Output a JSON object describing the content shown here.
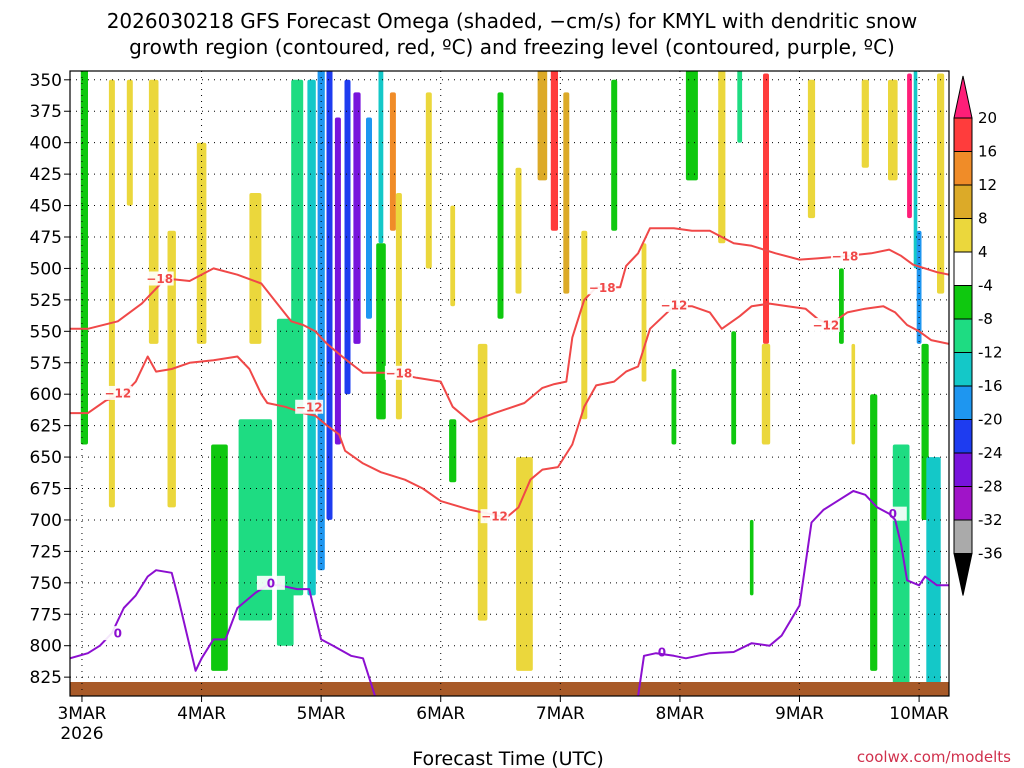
{
  "chart_data": {
    "type": "heatmap",
    "title_line1": "2026030218 GFS Forecast Omega (shaded, −cm/s) for KMYL with dendritic snow",
    "title_line2": "growth region (contoured, red, ºC) and freezing level (contoured, purple, ºC)",
    "xlabel": "Forecast Time (UTC)",
    "credit": "coolwx.com/modelts",
    "x_ticks": [
      {
        "label": "3MAR",
        "sub": "2026",
        "day": 3
      },
      {
        "label": "4MAR",
        "day": 4
      },
      {
        "label": "5MAR",
        "day": 5
      },
      {
        "label": "6MAR",
        "day": 6
      },
      {
        "label": "7MAR",
        "day": 7
      },
      {
        "label": "8MAR",
        "day": 8
      },
      {
        "label": "9MAR",
        "day": 9
      },
      {
        "label": "10MAR",
        "day": 10
      }
    ],
    "xlim": [
      2.9,
      10.25
    ],
    "y_ticks": [
      350,
      375,
      400,
      425,
      450,
      475,
      500,
      525,
      550,
      575,
      600,
      625,
      650,
      675,
      700,
      725,
      750,
      775,
      800,
      825
    ],
    "ylim": [
      343,
      840
    ],
    "grid": true,
    "colorbar": {
      "levels": [
        20,
        16,
        12,
        8,
        4,
        -4,
        -8,
        -12,
        -16,
        -20,
        -24,
        -28,
        -32,
        -36
      ],
      "colors": [
        "#ff1e78",
        "#ff3c3c",
        "#f08c28",
        "#dcaa28",
        "#ebd73c",
        "#ffffff",
        "#0fc80f",
        "#1edc82",
        "#14c8c8",
        "#1e96f0",
        "#1e3cf0",
        "#7814dc",
        "#a014c8",
        "#aaaaaa",
        "#000000"
      ]
    },
    "omega_features": [
      {
        "t": 3.02,
        "p1": 150,
        "p2": 640,
        "w": 0.06,
        "v": -8
      },
      {
        "t": 3.25,
        "p1": 350,
        "p2": 690,
        "w": 0.05,
        "v": 6
      },
      {
        "t": 3.4,
        "p1": 350,
        "p2": 450,
        "w": 0.05,
        "v": 6
      },
      {
        "t": 3.6,
        "p1": 350,
        "p2": 560,
        "w": 0.08,
        "v": 6
      },
      {
        "t": 3.75,
        "p1": 470,
        "p2": 690,
        "w": 0.07,
        "v": 5
      },
      {
        "t": 4.0,
        "p1": 400,
        "p2": 560,
        "w": 0.08,
        "v": 5
      },
      {
        "t": 4.15,
        "p1": 640,
        "p2": 820,
        "w": 0.14,
        "v": -8
      },
      {
        "t": 4.45,
        "p1": 620,
        "p2": 780,
        "w": 0.28,
        "v": -10
      },
      {
        "t": 4.45,
        "p1": 440,
        "p2": 560,
        "w": 0.1,
        "v": 6
      },
      {
        "t": 4.7,
        "p1": 540,
        "p2": 800,
        "w": 0.14,
        "v": -9
      },
      {
        "t": 4.8,
        "p1": 350,
        "p2": 760,
        "w": 0.1,
        "v": -11
      },
      {
        "t": 4.92,
        "p1": 350,
        "p2": 760,
        "w": 0.07,
        "v": -14
      },
      {
        "t": 5.0,
        "p1": 340,
        "p2": 740,
        "w": 0.06,
        "v": -18
      },
      {
        "t": 5.07,
        "p1": 340,
        "p2": 700,
        "w": 0.05,
        "v": -23
      },
      {
        "t": 5.14,
        "p1": 380,
        "p2": 640,
        "w": 0.05,
        "v": -28
      },
      {
        "t": 5.22,
        "p1": 350,
        "p2": 600,
        "w": 0.05,
        "v": -22
      },
      {
        "t": 5.3,
        "p1": 360,
        "p2": 560,
        "w": 0.06,
        "v": -26
      },
      {
        "t": 5.4,
        "p1": 380,
        "p2": 540,
        "w": 0.05,
        "v": -20
      },
      {
        "t": 5.5,
        "p1": 340,
        "p2": 480,
        "w": 0.04,
        "v": -14
      },
      {
        "t": 5.5,
        "p1": 480,
        "p2": 620,
        "w": 0.08,
        "v": -8
      },
      {
        "t": 5.6,
        "p1": 360,
        "p2": 470,
        "w": 0.05,
        "v": 12
      },
      {
        "t": 5.65,
        "p1": 440,
        "p2": 620,
        "w": 0.05,
        "v": 6
      },
      {
        "t": 5.9,
        "p1": 360,
        "p2": 500,
        "w": 0.05,
        "v": 6
      },
      {
        "t": 6.1,
        "p1": 450,
        "p2": 530,
        "w": 0.04,
        "v": 6
      },
      {
        "t": 6.1,
        "p1": 620,
        "p2": 670,
        "w": 0.06,
        "v": -8
      },
      {
        "t": 6.35,
        "p1": 560,
        "p2": 780,
        "w": 0.08,
        "v": 5
      },
      {
        "t": 6.5,
        "p1": 360,
        "p2": 540,
        "w": 0.05,
        "v": -8
      },
      {
        "t": 6.65,
        "p1": 420,
        "p2": 520,
        "w": 0.05,
        "v": 6
      },
      {
        "t": 6.7,
        "p1": 650,
        "p2": 820,
        "w": 0.14,
        "v": 6
      },
      {
        "t": 6.85,
        "p1": 340,
        "p2": 430,
        "w": 0.08,
        "v": 10
      },
      {
        "t": 6.95,
        "p1": 340,
        "p2": 470,
        "w": 0.06,
        "v": 18
      },
      {
        "t": 7.05,
        "p1": 360,
        "p2": 520,
        "w": 0.05,
        "v": 8
      },
      {
        "t": 7.2,
        "p1": 470,
        "p2": 620,
        "w": 0.05,
        "v": 6
      },
      {
        "t": 7.45,
        "p1": 350,
        "p2": 470,
        "w": 0.05,
        "v": -8
      },
      {
        "t": 7.7,
        "p1": 480,
        "p2": 590,
        "w": 0.04,
        "v": 6
      },
      {
        "t": 7.95,
        "p1": 580,
        "p2": 640,
        "w": 0.04,
        "v": -8
      },
      {
        "t": 8.1,
        "p1": 340,
        "p2": 430,
        "w": 0.1,
        "v": -8
      },
      {
        "t": 8.35,
        "p1": 340,
        "p2": 480,
        "w": 0.06,
        "v": 6
      },
      {
        "t": 8.45,
        "p1": 550,
        "p2": 640,
        "w": 0.04,
        "v": -8
      },
      {
        "t": 8.5,
        "p1": 340,
        "p2": 400,
        "w": 0.04,
        "v": -12
      },
      {
        "t": 8.72,
        "p1": 345,
        "p2": 560,
        "w": 0.05,
        "v": 19
      },
      {
        "t": 8.72,
        "p1": 560,
        "p2": 640,
        "w": 0.07,
        "v": 6
      },
      {
        "t": 8.6,
        "p1": 700,
        "p2": 760,
        "w": 0.03,
        "v": -8
      },
      {
        "t": 9.1,
        "p1": 350,
        "p2": 460,
        "w": 0.06,
        "v": 5
      },
      {
        "t": 9.35,
        "p1": 500,
        "p2": 560,
        "w": 0.04,
        "v": -8
      },
      {
        "t": 9.45,
        "p1": 560,
        "p2": 640,
        "w": 0.03,
        "v": 6
      },
      {
        "t": 9.55,
        "p1": 350,
        "p2": 420,
        "w": 0.06,
        "v": 5
      },
      {
        "t": 9.62,
        "p1": 600,
        "p2": 820,
        "w": 0.06,
        "v": -8
      },
      {
        "t": 9.78,
        "p1": 350,
        "p2": 430,
        "w": 0.08,
        "v": 6
      },
      {
        "t": 9.85,
        "p1": 640,
        "p2": 830,
        "w": 0.14,
        "v": -10
      },
      {
        "t": 9.92,
        "p1": 345,
        "p2": 460,
        "w": 0.04,
        "v": 20
      },
      {
        "t": 9.97,
        "p1": 340,
        "p2": 500,
        "w": 0.03,
        "v": -14
      },
      {
        "t": 10.0,
        "p1": 470,
        "p2": 560,
        "w": 0.04,
        "v": -17
      },
      {
        "t": 10.05,
        "p1": 560,
        "p2": 700,
        "w": 0.06,
        "v": -8
      },
      {
        "t": 10.12,
        "p1": 650,
        "p2": 830,
        "w": 0.12,
        "v": -13
      },
      {
        "t": 10.18,
        "p1": 345,
        "p2": 520,
        "w": 0.06,
        "v": 6
      }
    ],
    "contours": [
      {
        "name": "dgz_minus18",
        "color": "#f04848",
        "labels": [
          {
            "text": "−18",
            "t": 3.65,
            "p": 508
          },
          {
            "text": "−18",
            "t": 5.65,
            "p": 583
          },
          {
            "text": "−18",
            "t": 7.35,
            "p": 515
          },
          {
            "text": "−18",
            "t": 9.38,
            "p": 490
          }
        ],
        "points": [
          [
            2.9,
            548
          ],
          [
            3.05,
            548
          ],
          [
            3.3,
            542
          ],
          [
            3.5,
            528
          ],
          [
            3.7,
            508
          ],
          [
            3.9,
            510
          ],
          [
            4.1,
            500
          ],
          [
            4.3,
            505
          ],
          [
            4.5,
            512
          ],
          [
            4.65,
            530
          ],
          [
            4.75,
            542
          ],
          [
            4.85,
            545
          ],
          [
            4.95,
            550
          ],
          [
            5.05,
            560
          ],
          [
            5.2,
            572
          ],
          [
            5.35,
            583
          ],
          [
            5.6,
            583
          ],
          [
            5.8,
            587
          ],
          [
            6.0,
            590
          ],
          [
            6.1,
            610
          ],
          [
            6.25,
            622
          ],
          [
            6.45,
            615
          ],
          [
            6.7,
            607
          ],
          [
            6.85,
            595
          ],
          [
            6.95,
            592
          ],
          [
            7.05,
            590
          ],
          [
            7.1,
            555
          ],
          [
            7.2,
            525
          ],
          [
            7.3,
            515
          ],
          [
            7.5,
            515
          ],
          [
            7.55,
            498
          ],
          [
            7.65,
            488
          ],
          [
            7.75,
            468
          ],
          [
            7.95,
            468
          ],
          [
            8.1,
            470
          ],
          [
            8.25,
            470
          ],
          [
            8.45,
            480
          ],
          [
            8.6,
            482
          ],
          [
            8.8,
            488
          ],
          [
            9.0,
            493
          ],
          [
            9.15,
            492
          ],
          [
            9.4,
            490
          ],
          [
            9.6,
            488
          ],
          [
            9.75,
            485
          ],
          [
            9.85,
            490
          ],
          [
            9.95,
            497
          ],
          [
            10.05,
            500
          ],
          [
            10.15,
            503
          ],
          [
            10.25,
            505
          ]
        ]
      },
      {
        "name": "dgz_minus12",
        "color": "#f04848",
        "labels": [
          {
            "text": "−12",
            "t": 3.3,
            "p": 599
          },
          {
            "text": "−12",
            "t": 4.9,
            "p": 610
          },
          {
            "text": "−12",
            "t": 6.45,
            "p": 697
          },
          {
            "text": "−12",
            "t": 7.95,
            "p": 529
          },
          {
            "text": "−12",
            "t": 9.22,
            "p": 545
          }
        ],
        "points": [
          [
            2.9,
            615
          ],
          [
            3.05,
            615
          ],
          [
            3.2,
            605
          ],
          [
            3.35,
            600
          ],
          [
            3.45,
            590
          ],
          [
            3.55,
            570
          ],
          [
            3.62,
            582
          ],
          [
            3.75,
            580
          ],
          [
            3.9,
            575
          ],
          [
            4.1,
            573
          ],
          [
            4.3,
            570
          ],
          [
            4.4,
            580
          ],
          [
            4.5,
            600
          ],
          [
            4.55,
            607
          ],
          [
            4.7,
            610
          ],
          [
            4.85,
            615
          ],
          [
            4.95,
            617
          ],
          [
            5.05,
            625
          ],
          [
            5.15,
            632
          ],
          [
            5.2,
            645
          ],
          [
            5.35,
            655
          ],
          [
            5.5,
            662
          ],
          [
            5.7,
            668
          ],
          [
            5.85,
            675
          ],
          [
            6.0,
            685
          ],
          [
            6.25,
            692
          ],
          [
            6.4,
            695
          ],
          [
            6.55,
            698
          ],
          [
            6.65,
            690
          ],
          [
            6.75,
            668
          ],
          [
            6.85,
            660
          ],
          [
            6.98,
            658
          ],
          [
            7.1,
            640
          ],
          [
            7.2,
            610
          ],
          [
            7.3,
            593
          ],
          [
            7.45,
            590
          ],
          [
            7.55,
            582
          ],
          [
            7.65,
            578
          ],
          [
            7.75,
            548
          ],
          [
            7.95,
            530
          ],
          [
            8.1,
            530
          ],
          [
            8.25,
            535
          ],
          [
            8.35,
            548
          ],
          [
            8.5,
            538
          ],
          [
            8.6,
            530
          ],
          [
            8.75,
            528
          ],
          [
            8.9,
            530
          ],
          [
            9.05,
            532
          ],
          [
            9.15,
            540
          ],
          [
            9.25,
            545
          ],
          [
            9.4,
            535
          ],
          [
            9.55,
            532
          ],
          [
            9.7,
            530
          ],
          [
            9.8,
            535
          ],
          [
            9.9,
            545
          ],
          [
            10.0,
            550
          ],
          [
            10.1,
            557
          ],
          [
            10.25,
            560
          ]
        ]
      },
      {
        "name": "freezing_level_0",
        "color": "#8c0fd0",
        "labels": [
          {
            "text": "0",
            "t": 3.3,
            "p": 790
          },
          {
            "text": "0",
            "t": 4.58,
            "p": 750
          },
          {
            "text": "0",
            "t": 7.85,
            "p": 805
          },
          {
            "text": "0",
            "t": 9.78,
            "p": 695
          }
        ],
        "points": [
          [
            2.9,
            810
          ],
          [
            3.05,
            806
          ],
          [
            3.15,
            800
          ],
          [
            3.25,
            790
          ],
          [
            3.35,
            770
          ],
          [
            3.45,
            760
          ],
          [
            3.55,
            745
          ],
          [
            3.62,
            740
          ],
          [
            3.75,
            742
          ],
          [
            3.8,
            760
          ],
          [
            3.9,
            800
          ],
          [
            3.95,
            820
          ],
          [
            4.0,
            810
          ],
          [
            4.1,
            795
          ],
          [
            4.2,
            795
          ],
          [
            4.3,
            770
          ],
          [
            4.45,
            758
          ],
          [
            4.55,
            752
          ],
          [
            4.65,
            752
          ],
          [
            4.8,
            755
          ],
          [
            4.9,
            755
          ],
          [
            5.0,
            795
          ],
          [
            5.1,
            800
          ],
          [
            5.25,
            808
          ],
          [
            5.35,
            810
          ],
          [
            5.45,
            840
          ]
        ]
      },
      {
        "name": "freezing_level_0b",
        "color": "#8c0fd0",
        "labels": [],
        "points": [
          [
            7.65,
            840
          ],
          [
            7.7,
            808
          ],
          [
            7.8,
            806
          ],
          [
            7.95,
            808
          ],
          [
            8.05,
            810
          ],
          [
            8.25,
            806
          ],
          [
            8.45,
            805
          ],
          [
            8.6,
            798
          ],
          [
            8.75,
            800
          ],
          [
            8.85,
            792
          ],
          [
            9.0,
            768
          ],
          [
            9.1,
            702
          ],
          [
            9.2,
            692
          ],
          [
            9.3,
            686
          ],
          [
            9.45,
            677
          ],
          [
            9.55,
            680
          ],
          [
            9.65,
            690
          ],
          [
            9.75,
            695
          ],
          [
            9.8,
            700
          ],
          [
            9.85,
            720
          ],
          [
            9.9,
            748
          ],
          [
            10.0,
            752
          ],
          [
            10.05,
            745
          ],
          [
            10.15,
            752
          ],
          [
            10.25,
            752
          ]
        ]
      }
    ],
    "terrain_color": "#a85a28"
  }
}
